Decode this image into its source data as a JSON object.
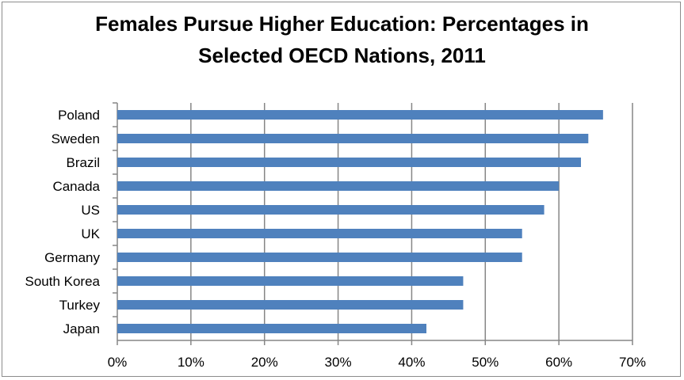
{
  "chart_data": {
    "type": "bar",
    "orientation": "horizontal",
    "title_lines": [
      "Females Pursue Higher Education: Percentages in",
      "Selected OECD Nations, 2011"
    ],
    "categories": [
      "Poland",
      "Sweden",
      "Brazil",
      "Canada",
      "US",
      "UK",
      "Germany",
      "South Korea",
      "Turkey",
      "Japan"
    ],
    "values": [
      66,
      64,
      63,
      60,
      58,
      55,
      55,
      47,
      47,
      42
    ],
    "value_unit": "%",
    "xlim": [
      0,
      70
    ],
    "x_ticks": [
      "0%",
      "10%",
      "20%",
      "30%",
      "40%",
      "50%",
      "60%",
      "70%"
    ],
    "grid": "vertical",
    "legend": "none",
    "bar_color": "#4f81bd"
  }
}
